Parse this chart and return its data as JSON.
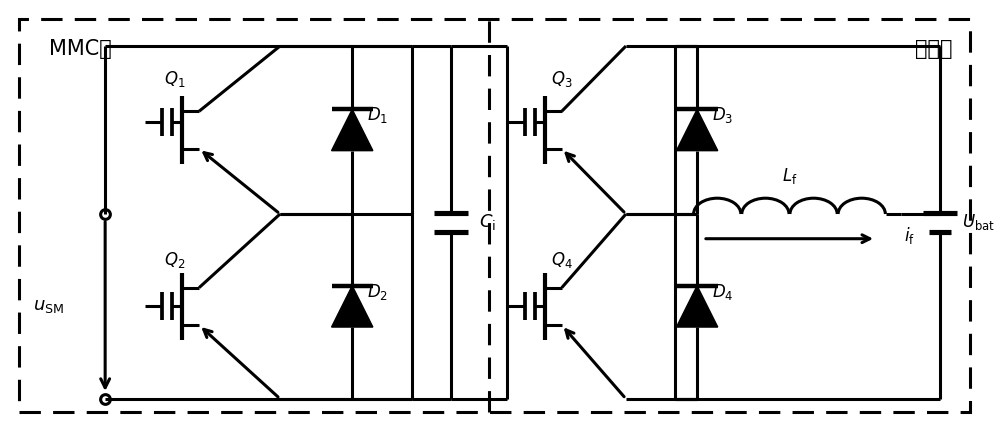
{
  "bg_color": "#ffffff",
  "line_color": "#000000",
  "lw": 2.2,
  "fig_width": 10.0,
  "fig_height": 4.29,
  "dpi": 100,
  "mmc_label": "MMC侧",
  "battery_label": "电池侧",
  "label_fontsize": 15
}
